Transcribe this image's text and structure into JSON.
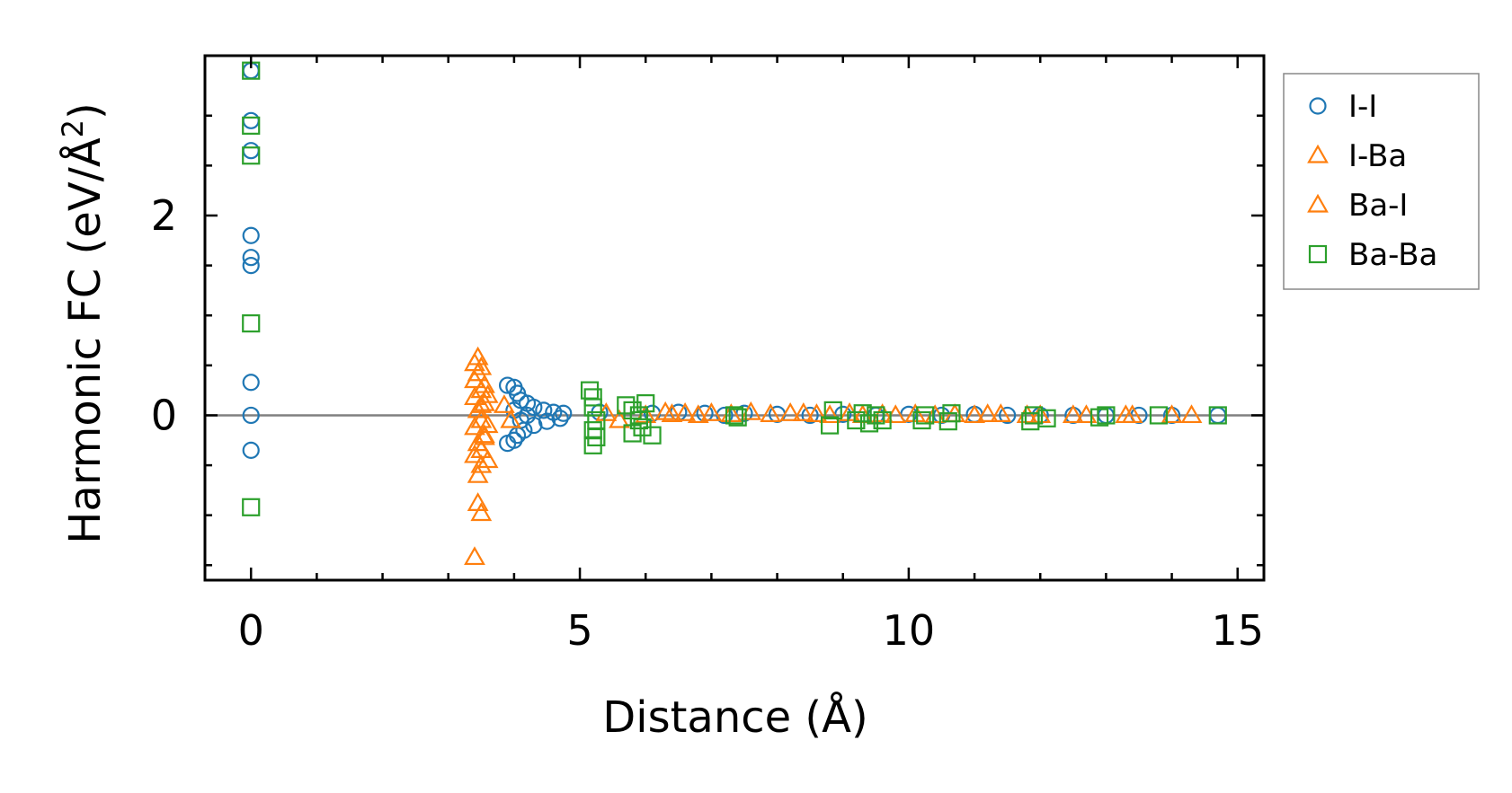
{
  "chart_data": {
    "type": "scatter",
    "xlabel": "Distance (Å)",
    "ylabel_prefix": "Harmonic FC (eV/Å",
    "ylabel_sup": "2",
    "ylabel_suffix": ")",
    "xlim": [
      -0.7,
      15.4
    ],
    "ylim": [
      -1.65,
      3.6
    ],
    "xticks": [
      0,
      5,
      10,
      15
    ],
    "xtick_labels": [
      "0",
      "5",
      "10",
      "15"
    ],
    "xminor": [
      1,
      2,
      3,
      4,
      6,
      7,
      8,
      9,
      11,
      12,
      13,
      14
    ],
    "yticks": [
      0,
      2
    ],
    "ytick_labels": [
      "0",
      "2"
    ],
    "yminor": [
      -1.5,
      -1,
      -0.5,
      0.5,
      1,
      1.5,
      2.5,
      3
    ],
    "zero_line": true,
    "legend_position": "outside-right",
    "series": [
      {
        "name": "I-I",
        "marker": "circle",
        "color": "#1f77b4",
        "points": [
          [
            0,
            3.45
          ],
          [
            0,
            2.95
          ],
          [
            0,
            2.65
          ],
          [
            0,
            1.8
          ],
          [
            0,
            1.58
          ],
          [
            0,
            1.5
          ],
          [
            0,
            0.33
          ],
          [
            0,
            0.0
          ],
          [
            0,
            -0.35
          ],
          [
            3.9,
            0.3
          ],
          [
            4.0,
            0.28
          ],
          [
            4.05,
            0.22
          ],
          [
            4.1,
            0.15
          ],
          [
            4.2,
            0.12
          ],
          [
            4.3,
            0.08
          ],
          [
            4.45,
            0.05
          ],
          [
            4.6,
            0.03
          ],
          [
            4.75,
            0.02
          ],
          [
            3.9,
            -0.28
          ],
          [
            4.0,
            -0.25
          ],
          [
            4.05,
            -0.2
          ],
          [
            4.15,
            -0.15
          ],
          [
            4.3,
            -0.1
          ],
          [
            4.5,
            -0.06
          ],
          [
            4.7,
            -0.03
          ],
          [
            4.0,
            0.05
          ],
          [
            4.1,
            -0.05
          ],
          [
            4.2,
            0.0
          ],
          [
            5.3,
            0.03
          ],
          [
            6.1,
            0.02
          ],
          [
            6.5,
            0.03
          ],
          [
            6.9,
            0.02
          ],
          [
            7.2,
            0.0
          ],
          [
            7.5,
            0.02
          ],
          [
            8.0,
            0.01
          ],
          [
            8.5,
            0.0
          ],
          [
            9.0,
            0.01
          ],
          [
            9.5,
            0.0
          ],
          [
            10.0,
            0.01
          ],
          [
            10.5,
            0.0
          ],
          [
            11.0,
            0.01
          ],
          [
            11.5,
            0.0
          ],
          [
            12.0,
            0.0
          ],
          [
            12.5,
            0.0
          ],
          [
            13.0,
            0.0
          ],
          [
            13.5,
            0.0
          ],
          [
            14.0,
            0.0
          ],
          [
            14.7,
            0.0
          ]
        ]
      },
      {
        "name": "I-Ba",
        "marker": "triangle",
        "color": "#ff7f0e",
        "points": [
          [
            3.45,
            0.58
          ],
          [
            3.4,
            0.52
          ],
          [
            3.45,
            0.42
          ],
          [
            3.4,
            0.35
          ],
          [
            3.5,
            0.25
          ],
          [
            3.4,
            0.18
          ],
          [
            3.55,
            0.12
          ],
          [
            3.45,
            0.05
          ],
          [
            3.5,
            -0.05
          ],
          [
            3.4,
            -0.12
          ],
          [
            3.55,
            -0.2
          ],
          [
            3.45,
            -0.28
          ],
          [
            3.4,
            -0.4
          ],
          [
            3.5,
            -0.5
          ],
          [
            3.45,
            -0.6
          ],
          [
            3.45,
            -0.88
          ],
          [
            3.5,
            -0.98
          ],
          [
            3.4,
            -1.42
          ],
          [
            3.85,
            0.1
          ],
          [
            3.95,
            -0.05
          ],
          [
            5.4,
            0.02
          ],
          [
            6.3,
            0.03
          ],
          [
            6.6,
            0.02
          ],
          [
            7.0,
            0.02
          ],
          [
            7.6,
            0.03
          ],
          [
            8.2,
            0.02
          ],
          [
            8.6,
            0.01
          ],
          [
            9.1,
            0.02
          ],
          [
            9.6,
            0.01
          ],
          [
            10.1,
            0.01
          ],
          [
            10.7,
            0.01
          ],
          [
            11.2,
            0.01
          ],
          [
            11.8,
            0.0
          ],
          [
            12.5,
            0.0
          ],
          [
            13.3,
            0.0
          ],
          [
            14.0,
            0.0
          ],
          [
            14.3,
            0.0
          ]
        ]
      },
      {
        "name": "Ba-I",
        "marker": "triangle",
        "color": "#ff7f0e",
        "points": [
          [
            3.5,
            0.48
          ],
          [
            3.55,
            0.3
          ],
          [
            3.6,
            0.2
          ],
          [
            3.5,
            0.1
          ],
          [
            3.6,
            -0.1
          ],
          [
            3.55,
            -0.22
          ],
          [
            3.5,
            -0.35
          ],
          [
            3.6,
            -0.45
          ],
          [
            5.6,
            -0.05
          ],
          [
            6.0,
            0.0
          ],
          [
            6.4,
            0.01
          ],
          [
            6.8,
            0.0
          ],
          [
            7.3,
            0.01
          ],
          [
            7.9,
            0.01
          ],
          [
            8.4,
            0.02
          ],
          [
            8.8,
            0.0
          ],
          [
            9.3,
            0.0
          ],
          [
            9.8,
            0.0
          ],
          [
            10.4,
            0.0
          ],
          [
            11.0,
            0.0
          ],
          [
            11.4,
            0.01
          ],
          [
            12.0,
            0.0
          ],
          [
            12.7,
            0.0
          ],
          [
            13.4,
            0.0
          ]
        ]
      },
      {
        "name": "Ba-Ba",
        "marker": "square",
        "color": "#2ca02c",
        "points": [
          [
            0,
            3.45
          ],
          [
            0,
            2.9
          ],
          [
            0,
            2.6
          ],
          [
            0,
            0.92
          ],
          [
            0,
            -0.92
          ],
          [
            5.15,
            0.25
          ],
          [
            5.2,
            0.18
          ],
          [
            5.2,
            0.08
          ],
          [
            5.25,
            -0.05
          ],
          [
            5.2,
            -0.15
          ],
          [
            5.25,
            -0.22
          ],
          [
            5.2,
            -0.3
          ],
          [
            5.7,
            0.1
          ],
          [
            5.8,
            0.05
          ],
          [
            5.9,
            -0.05
          ],
          [
            5.95,
            -0.12
          ],
          [
            5.8,
            -0.18
          ],
          [
            6.0,
            0.12
          ],
          [
            6.1,
            -0.2
          ],
          [
            5.9,
            0.0
          ],
          [
            7.35,
            0.0
          ],
          [
            7.4,
            -0.02
          ],
          [
            8.8,
            -0.1
          ],
          [
            8.85,
            0.05
          ],
          [
            9.2,
            -0.05
          ],
          [
            9.3,
            0.02
          ],
          [
            9.4,
            -0.08
          ],
          [
            9.5,
            0.0
          ],
          [
            9.6,
            -0.05
          ],
          [
            10.2,
            -0.05
          ],
          [
            10.25,
            0.0
          ],
          [
            10.6,
            -0.06
          ],
          [
            10.65,
            0.02
          ],
          [
            11.85,
            -0.06
          ],
          [
            11.9,
            0.0
          ],
          [
            12.1,
            -0.03
          ],
          [
            12.9,
            -0.02
          ],
          [
            13.0,
            0.0
          ],
          [
            13.8,
            0.0
          ],
          [
            14.7,
            0.0
          ]
        ]
      }
    ]
  }
}
